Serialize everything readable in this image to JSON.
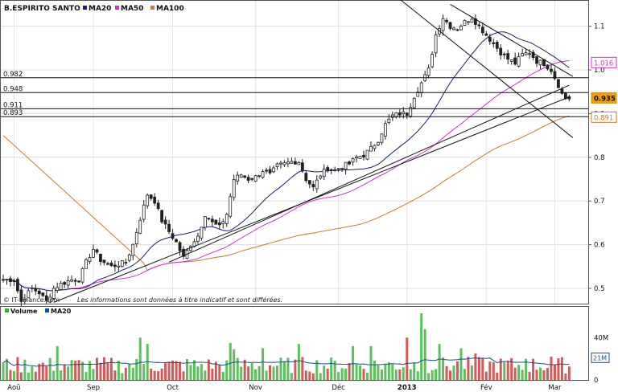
{
  "chart_data": {
    "type": "candlestick",
    "title": "B.ESPIRITO SANTO",
    "legend": [
      {
        "name": "MA20",
        "color": "#1a1a80"
      },
      {
        "name": "MA50",
        "color": "#cc33cc"
      },
      {
        "name": "MA100",
        "color": "#cc7a29"
      }
    ],
    "y_ticks": [
      "1.1",
      "1.0",
      "0.9",
      "0.8",
      "0.7",
      "0.6",
      "0.5"
    ],
    "y_tick_values": [
      1.1,
      1.0,
      0.9,
      0.8,
      0.7,
      0.6,
      0.5
    ],
    "ylim": [
      0.465,
      1.16
    ],
    "x_months": [
      {
        "label": "Aoû",
        "index": 3
      },
      {
        "label": "Sep",
        "index": 25
      },
      {
        "label": "Oct",
        "index": 47
      },
      {
        "label": "Nov",
        "index": 70
      },
      {
        "label": "Déc",
        "index": 93
      },
      {
        "label": "2013",
        "index": 112
      },
      {
        "label": "Fév",
        "index": 134
      },
      {
        "label": "Mar",
        "index": 153
      }
    ],
    "n_bars": 158,
    "levels": [
      {
        "label": "0.982",
        "value": 0.982
      },
      {
        "label": "0.948",
        "value": 0.948
      },
      {
        "label": "0.911",
        "value": 0.911
      },
      {
        "label": "0.893",
        "value": 0.893
      }
    ],
    "value_tags": [
      {
        "label": "1.016",
        "value": 1.016,
        "color": "#cc33cc"
      },
      {
        "label": "0.935",
        "value": 0.935,
        "color": "#e08a00"
      },
      {
        "label": "0.891",
        "value": 0.891,
        "color": "#cc7a29"
      }
    ],
    "trendlines": [
      {
        "from": [
          14,
          0.468
        ],
        "to": [
          157,
          0.938
        ]
      },
      {
        "from": [
          46,
          0.56
        ],
        "to": [
          157,
          0.965
        ]
      },
      {
        "from": [
          108,
          1.175
        ],
        "to": [
          158,
          0.845
        ]
      },
      {
        "from": [
          124,
          1.15
        ],
        "to": [
          158,
          0.985
        ]
      }
    ],
    "anchors": [
      [
        0,
        0.52
      ],
      [
        3,
        0.52
      ],
      [
        5,
        0.47
      ],
      [
        8,
        0.5
      ],
      [
        10,
        0.49
      ],
      [
        12,
        0.47
      ],
      [
        14,
        0.5
      ],
      [
        16,
        0.51
      ],
      [
        19,
        0.52
      ],
      [
        21,
        0.52
      ],
      [
        23,
        0.56
      ],
      [
        25,
        0.59
      ],
      [
        27,
        0.565
      ],
      [
        30,
        0.55
      ],
      [
        32,
        0.555
      ],
      [
        34,
        0.56
      ],
      [
        36,
        0.6
      ],
      [
        38,
        0.66
      ],
      [
        40,
        0.715
      ],
      [
        42,
        0.7
      ],
      [
        44,
        0.655
      ],
      [
        46,
        0.63
      ],
      [
        48,
        0.605
      ],
      [
        50,
        0.57
      ],
      [
        52,
        0.6
      ],
      [
        54,
        0.62
      ],
      [
        56,
        0.67
      ],
      [
        58,
        0.65
      ],
      [
        60,
        0.64
      ],
      [
        62,
        0.67
      ],
      [
        64,
        0.75
      ],
      [
        66,
        0.76
      ],
      [
        68,
        0.75
      ],
      [
        70,
        0.755
      ],
      [
        72,
        0.77
      ],
      [
        74,
        0.76
      ],
      [
        76,
        0.78
      ],
      [
        78,
        0.785
      ],
      [
        80,
        0.79
      ],
      [
        82,
        0.79
      ],
      [
        84,
        0.75
      ],
      [
        86,
        0.73
      ],
      [
        88,
        0.76
      ],
      [
        90,
        0.775
      ],
      [
        92,
        0.77
      ],
      [
        94,
        0.78
      ],
      [
        96,
        0.785
      ],
      [
        98,
        0.8
      ],
      [
        100,
        0.805
      ],
      [
        102,
        0.82
      ],
      [
        104,
        0.84
      ],
      [
        106,
        0.875
      ],
      [
        108,
        0.895
      ],
      [
        110,
        0.9
      ],
      [
        112,
        0.9
      ],
      [
        114,
        0.94
      ],
      [
        116,
        0.97
      ],
      [
        118,
        1.0
      ],
      [
        120,
        1.08
      ],
      [
        122,
        1.12
      ],
      [
        124,
        1.1
      ],
      [
        126,
        1.095
      ],
      [
        128,
        1.11
      ],
      [
        130,
        1.12
      ],
      [
        132,
        1.1
      ],
      [
        134,
        1.08
      ],
      [
        136,
        1.06
      ],
      [
        138,
        1.04
      ],
      [
        140,
        1.025
      ],
      [
        142,
        1.015
      ],
      [
        144,
        1.035
      ],
      [
        146,
        1.04
      ],
      [
        148,
        1.02
      ],
      [
        150,
        1.015
      ],
      [
        152,
        1.0
      ],
      [
        154,
        0.965
      ],
      [
        155,
        0.945
      ],
      [
        156,
        0.935
      ],
      [
        157,
        0.935
      ]
    ],
    "volume": {
      "label": "Volume",
      "ma_label": "MA20",
      "ticks": [
        "40M",
        "21M",
        "0"
      ],
      "tick_values": [
        40,
        21,
        0
      ],
      "max": 63,
      "spikes": [
        [
          15,
          32
        ],
        [
          38,
          40
        ],
        [
          40,
          34
        ],
        [
          63,
          35
        ],
        [
          64,
          29
        ],
        [
          72,
          30
        ],
        [
          82,
          34
        ],
        [
          97,
          32
        ],
        [
          102,
          32
        ],
        [
          112,
          40
        ],
        [
          116,
          63
        ],
        [
          117,
          48
        ],
        [
          121,
          34
        ],
        [
          127,
          30
        ],
        [
          131,
          25
        ],
        [
          145,
          20
        ],
        [
          152,
          22
        ]
      ]
    },
    "disclaimer_source": "© IT-Finance.com",
    "disclaimer_text": "Les informations sont données à titre indicatif et sont différées."
  }
}
